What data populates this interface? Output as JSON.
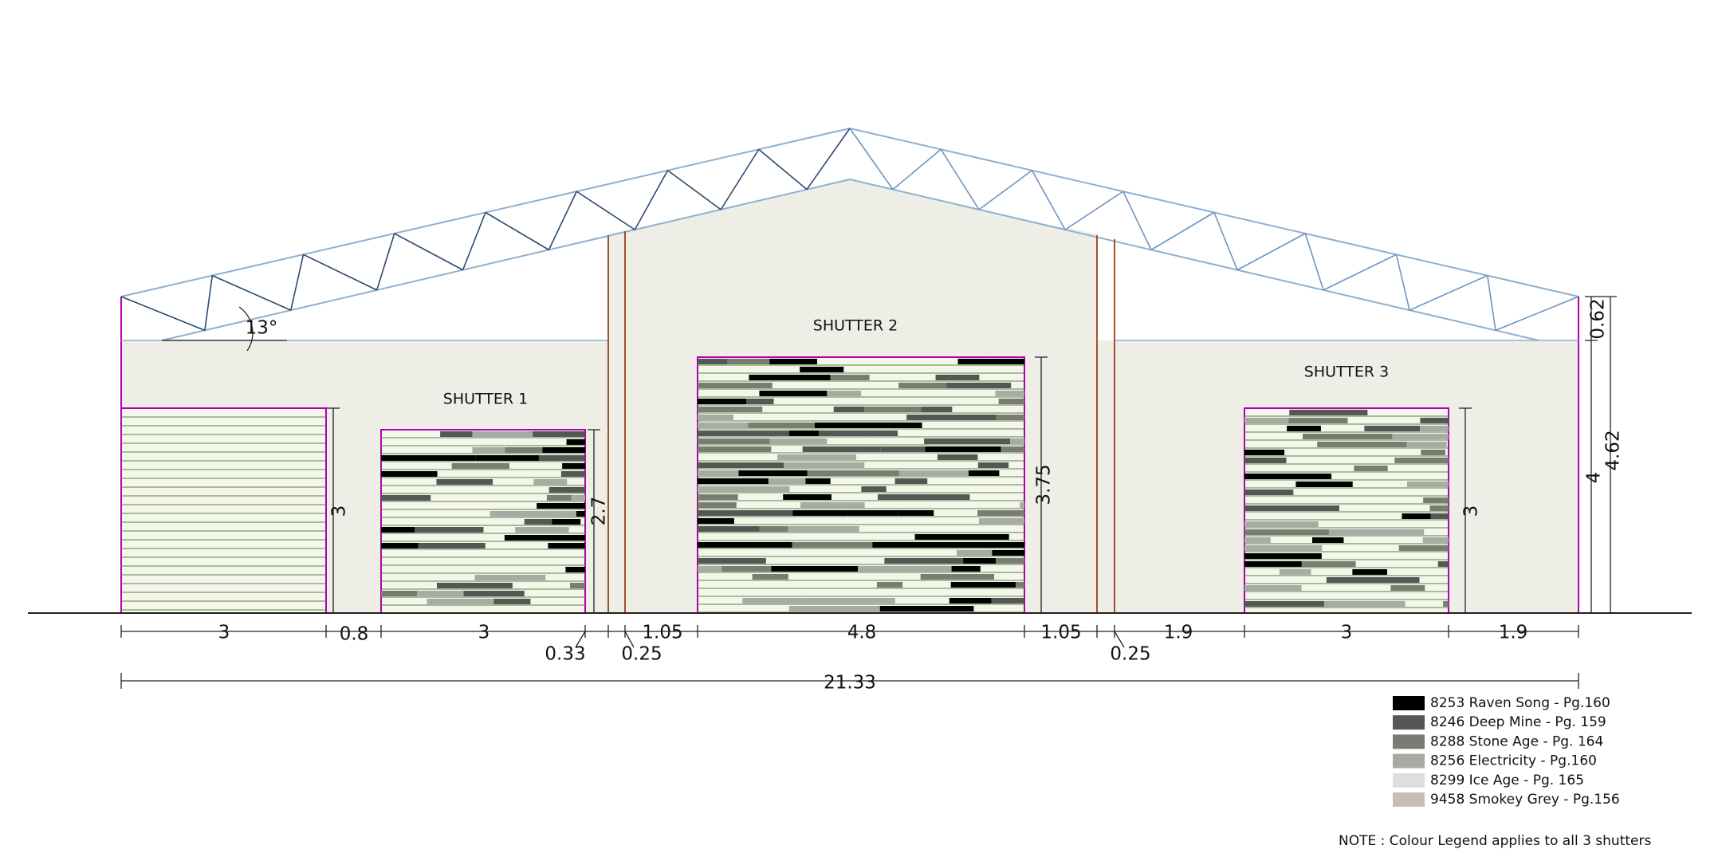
{
  "title_labels": {
    "shutters": [
      "SHUTTER 1",
      "SHUTTER 2",
      "SHUTTER 3"
    ],
    "roof_angle": "13°"
  },
  "dimensions": {
    "horizontal": [
      "3",
      "0.8",
      "3",
      "0.33",
      "0.25",
      "1.05",
      "4.8",
      "1.05",
      "0.25",
      "1.9",
      "3",
      "1.9"
    ],
    "overall": "21.33",
    "vertical": [
      "3",
      "2.7",
      "3.75",
      "3",
      "0.62",
      "4",
      "4.62"
    ]
  },
  "legend": {
    "items": [
      {
        "label": "8253 Raven Song - Pg.160",
        "color": "#000000"
      },
      {
        "label": "8246 Deep Mine - Pg. 159",
        "color": "#565656"
      },
      {
        "label": "8288 Stone Age - Pg. 164",
        "color": "#7b7b74"
      },
      {
        "label": "8256 Electricity - Pg.160",
        "color": "#a9a9a6"
      },
      {
        "label": "8299 Ice Age - Pg. 165",
        "color": "#dedede"
      },
      {
        "label": "9458 Smokey Grey - Pg.156",
        "color": "#c9beb5"
      }
    ]
  },
  "note": "NOTE : Colour Legend applies to all 3 shutters"
}
